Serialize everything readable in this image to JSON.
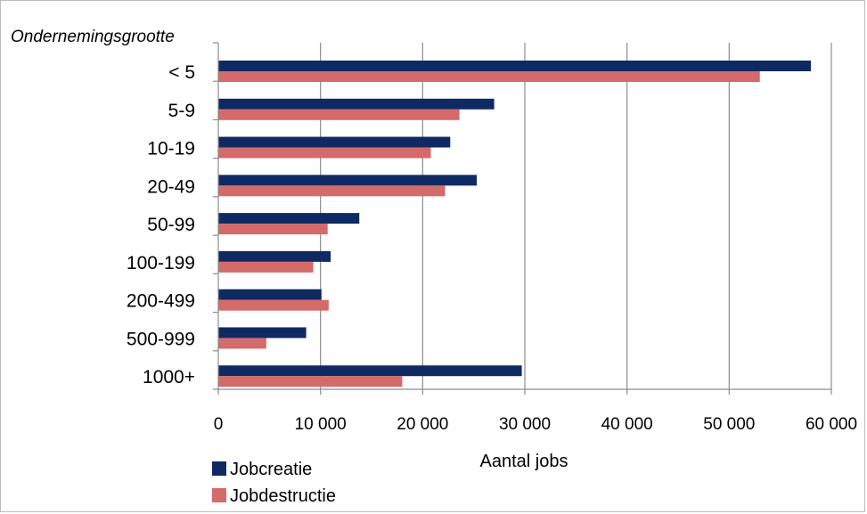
{
  "chart_data": {
    "type": "bar",
    "orientation": "horizontal",
    "title": "",
    "y_axis_title": "Ondernemingsgrootte",
    "xlabel": "Aantal jobs",
    "categories": [
      "< 5",
      "5-9",
      "10-19",
      "20-49",
      "50-99",
      "100-199",
      "200-499",
      "500-999",
      "1000+"
    ],
    "series": [
      {
        "name": "Jobcreatie",
        "color": "#0f2a63",
        "values": [
          58000,
          27000,
          22700,
          25300,
          13800,
          11000,
          10100,
          8600,
          29700
        ]
      },
      {
        "name": "Jobdestructie",
        "color": "#d56a6a",
        "values": [
          53000,
          23600,
          20800,
          22200,
          10700,
          9300,
          10800,
          4700,
          18000
        ]
      }
    ],
    "xlim": [
      0,
      60000
    ],
    "x_ticks": [
      0,
      10000,
      20000,
      30000,
      40000,
      50000,
      60000
    ],
    "x_tick_labels": [
      "0",
      "10 000",
      "20 000",
      "30 000",
      "40 000",
      "50 000",
      "60 000"
    ],
    "grid": "vertical",
    "legend_position": "bottom-left"
  }
}
